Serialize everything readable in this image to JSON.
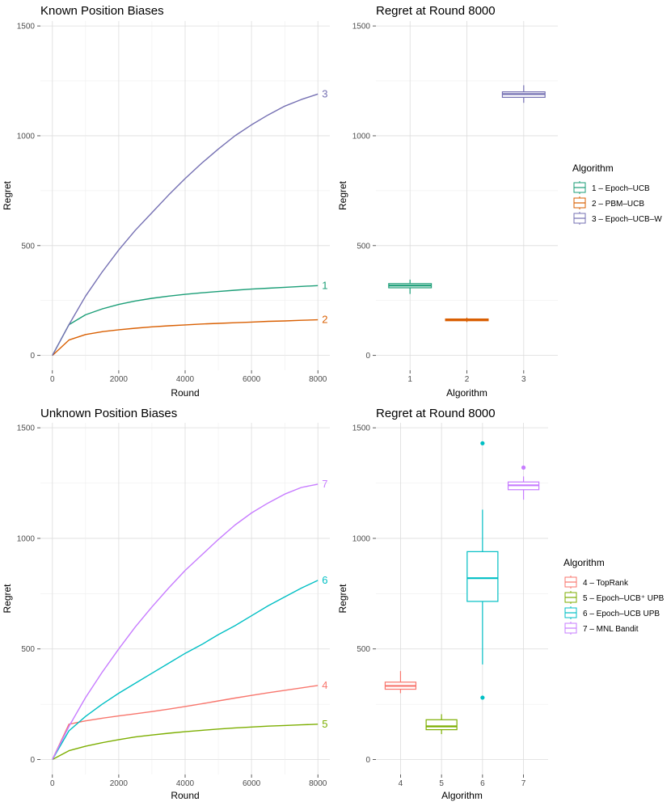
{
  "chart_data": [
    {
      "id": "p1",
      "type": "line",
      "title": "Known Position Biases",
      "xlabel": "Round",
      "ylabel": "Regret",
      "xlim": [
        0,
        8000
      ],
      "ylim": [
        0,
        1500
      ],
      "xticks": [
        0,
        2000,
        4000,
        6000,
        8000
      ],
      "xtick_labels": [
        "0",
        "2000",
        "4000",
        "6000",
        "8000"
      ],
      "yticks": [
        0,
        500,
        1000,
        1500
      ],
      "ytick_labels": [
        "0",
        "500",
        "1000",
        "1500"
      ],
      "x": [
        0,
        500,
        1000,
        1500,
        2000,
        2500,
        3000,
        3500,
        4000,
        4500,
        5000,
        5500,
        6000,
        6500,
        7000,
        7500,
        8000
      ],
      "series": [
        {
          "name": "1",
          "color": "#1b9e77",
          "values": [
            0,
            140,
            185,
            212,
            232,
            248,
            260,
            270,
            278,
            285,
            291,
            297,
            302,
            306,
            310,
            314,
            318
          ]
        },
        {
          "name": "2",
          "color": "#d95f02",
          "values": [
            0,
            70,
            95,
            108,
            117,
            124,
            130,
            135,
            139,
            143,
            146,
            149,
            152,
            155,
            157,
            160,
            162
          ]
        },
        {
          "name": "3",
          "color": "#7570b3",
          "values": [
            0,
            140,
            270,
            380,
            480,
            570,
            650,
            730,
            805,
            875,
            940,
            1000,
            1050,
            1095,
            1135,
            1165,
            1190
          ]
        }
      ]
    },
    {
      "id": "p2",
      "type": "box",
      "title": "Regret at Round 8000",
      "xlabel": "Algorithm",
      "ylabel": "Regret",
      "ylim": [
        0,
        1500
      ],
      "yticks": [
        0,
        500,
        1000,
        1500
      ],
      "ytick_labels": [
        "0",
        "500",
        "1000",
        "1500"
      ],
      "categories": [
        "1",
        "2",
        "3"
      ],
      "boxes": [
        {
          "category": "1",
          "color": "#1b9e77",
          "min": 280,
          "q1": 308,
          "median": 318,
          "q3": 327,
          "max": 345,
          "outliers": []
        },
        {
          "category": "2",
          "color": "#d95f02",
          "min": 152,
          "q1": 158,
          "median": 162,
          "q3": 166,
          "max": 172,
          "outliers": []
        },
        {
          "category": "3",
          "color": "#7570b3",
          "min": 1150,
          "q1": 1175,
          "median": 1190,
          "q3": 1200,
          "max": 1230,
          "outliers": []
        }
      ],
      "legend": {
        "title": "Algorithm",
        "entries": [
          {
            "label": "1 – Epoch–UCB",
            "color": "#1b9e77"
          },
          {
            "label": "2 – PBM–UCB",
            "color": "#d95f02"
          },
          {
            "label": "3 – Epoch–UCB–W",
            "color": "#7570b3"
          }
        ]
      }
    },
    {
      "id": "p3",
      "type": "line",
      "title": "Unknown Position Biases",
      "xlabel": "Round",
      "ylabel": "Regret",
      "xlim": [
        0,
        8000
      ],
      "ylim": [
        0,
        1500
      ],
      "xticks": [
        0,
        2000,
        4000,
        6000,
        8000
      ],
      "xtick_labels": [
        "0",
        "2000",
        "4000",
        "6000",
        "8000"
      ],
      "yticks": [
        0,
        500,
        1000,
        1500
      ],
      "ytick_labels": [
        "0",
        "500",
        "1000",
        "1500"
      ],
      "x": [
        0,
        500,
        1000,
        1500,
        2000,
        2500,
        3000,
        3500,
        4000,
        4500,
        5000,
        5500,
        6000,
        6500,
        7000,
        7500,
        8000
      ],
      "series": [
        {
          "name": "4",
          "color": "#f8766d",
          "values": [
            0,
            160,
            175,
            187,
            197,
            207,
            217,
            228,
            240,
            252,
            265,
            278,
            290,
            302,
            313,
            324,
            335
          ]
        },
        {
          "name": "5",
          "color": "#7cae00",
          "values": [
            0,
            40,
            60,
            76,
            90,
            102,
            111,
            119,
            126,
            132,
            138,
            143,
            147,
            151,
            154,
            157,
            160
          ]
        },
        {
          "name": "6",
          "color": "#00bfc4",
          "values": [
            0,
            130,
            195,
            250,
            300,
            345,
            390,
            435,
            480,
            520,
            565,
            605,
            650,
            695,
            735,
            775,
            810
          ]
        },
        {
          "name": "7",
          "color": "#c77cff",
          "values": [
            0,
            150,
            280,
            395,
            500,
            600,
            690,
            775,
            855,
            925,
            995,
            1060,
            1115,
            1160,
            1200,
            1230,
            1245
          ]
        }
      ]
    },
    {
      "id": "p4",
      "type": "box",
      "title": "Regret at Round 8000",
      "xlabel": "Algorithm",
      "ylabel": "Regret",
      "ylim": [
        0,
        1500
      ],
      "yticks": [
        0,
        500,
        1000,
        1500
      ],
      "ytick_labels": [
        "0",
        "500",
        "1000",
        "1500"
      ],
      "categories": [
        "4",
        "5",
        "6",
        "7"
      ],
      "boxes": [
        {
          "category": "4",
          "color": "#f8766d",
          "min": 300,
          "q1": 318,
          "median": 333,
          "q3": 350,
          "max": 400,
          "outliers": []
        },
        {
          "category": "5",
          "color": "#7cae00",
          "min": 115,
          "q1": 135,
          "median": 150,
          "q3": 180,
          "max": 205,
          "outliers": []
        },
        {
          "category": "6",
          "color": "#00bfc4",
          "min": 430,
          "q1": 715,
          "median": 820,
          "q3": 940,
          "max": 1130,
          "outliers": [
            1430,
            280
          ]
        },
        {
          "category": "7",
          "color": "#c77cff",
          "min": 1175,
          "q1": 1220,
          "median": 1240,
          "q3": 1255,
          "max": 1280,
          "outliers": [
            1320
          ]
        }
      ],
      "legend": {
        "title": "Algorithm",
        "entries": [
          {
            "label": "4 – TopRank",
            "color": "#f8766d"
          },
          {
            "label": "5 – Epoch–UCB⁺ UPB",
            "color": "#7cae00"
          },
          {
            "label": "6 – Epoch–UCB UPB",
            "color": "#00bfc4"
          },
          {
            "label": "7 – MNL Bandit",
            "color": "#c77cff"
          }
        ]
      }
    }
  ]
}
